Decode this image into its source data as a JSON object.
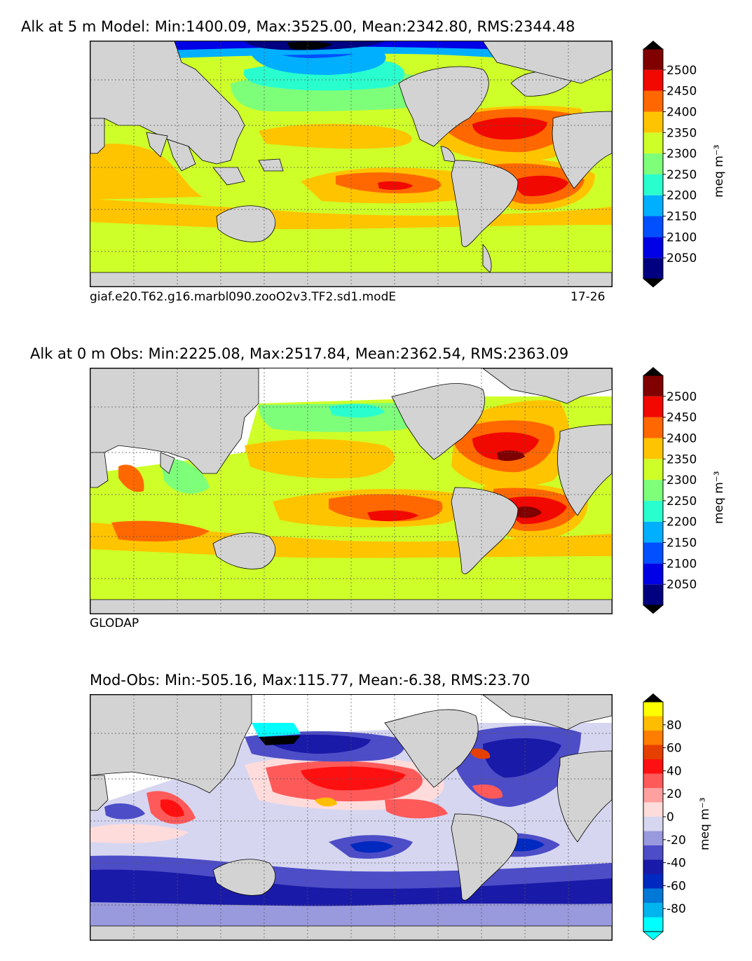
{
  "panels": [
    {
      "id": "model",
      "title": "Alk at 5 m Model: Min:1400.09, Max:3525.00, Mean:2342.80, RMS:2344.48",
      "footer_left": "giaf.e20.T62.g16.marbl090.zooO2v3.TF2.sd1.modE",
      "footer_right": "17-26",
      "colorbar": {
        "unit": "meq m⁻³",
        "tick_labels": [
          "2050",
          "2100",
          "2150",
          "2200",
          "2250",
          "2300",
          "2350",
          "2400",
          "2450",
          "2500"
        ],
        "colors": [
          "#000080",
          "#0000e6",
          "#0050ff",
          "#00b0ff",
          "#29ffce",
          "#7dff7a",
          "#ceff29",
          "#ffc400",
          "#ff6800",
          "#f10800",
          "#800000"
        ],
        "extend_under": "#000000",
        "extend_over": "#000000"
      }
    },
    {
      "id": "obs",
      "title": "Alk at 0 m Obs: Min:2225.08, Max:2517.84, Mean:2362.54, RMS:2363.09",
      "footer_left": "GLODAP",
      "footer_right": "",
      "colorbar": {
        "unit": "meq m⁻³",
        "tick_labels": [
          "2050",
          "2100",
          "2150",
          "2200",
          "2250",
          "2300",
          "2350",
          "2400",
          "2450",
          "2500"
        ],
        "colors": [
          "#000080",
          "#0000e6",
          "#0050ff",
          "#00b0ff",
          "#29ffce",
          "#7dff7a",
          "#ceff29",
          "#ffc400",
          "#ff6800",
          "#f10800",
          "#800000"
        ],
        "extend_under": "#000000",
        "extend_over": "#000000"
      }
    },
    {
      "id": "diff",
      "title": "Mod-Obs: Min:-505.16, Max:115.77, Mean:-6.38, RMS:23.70",
      "footer_left": "",
      "footer_right": "",
      "colorbar": {
        "unit": "meq m⁻³",
        "tick_labels": [
          "-80",
          "-60",
          "-40",
          "-20",
          "0",
          "20",
          "40",
          "60",
          "80"
        ],
        "colors": [
          "#00ffff",
          "#00b4ee",
          "#0078d8",
          "#0029c0",
          "#1a1aa8",
          "#4d4dc8",
          "#9999dd",
          "#d6d6f0",
          "#ffdcdc",
          "#ffa0a0",
          "#ff5a5a",
          "#ff1010",
          "#e64000",
          "#ff7d00",
          "#ffbd00",
          "#ffff00"
        ],
        "extend_under": "#00ffff",
        "extend_over": "#000000"
      }
    }
  ],
  "map_colors": {
    "land": "#d3d3d3",
    "no_data": "#ffffff"
  }
}
